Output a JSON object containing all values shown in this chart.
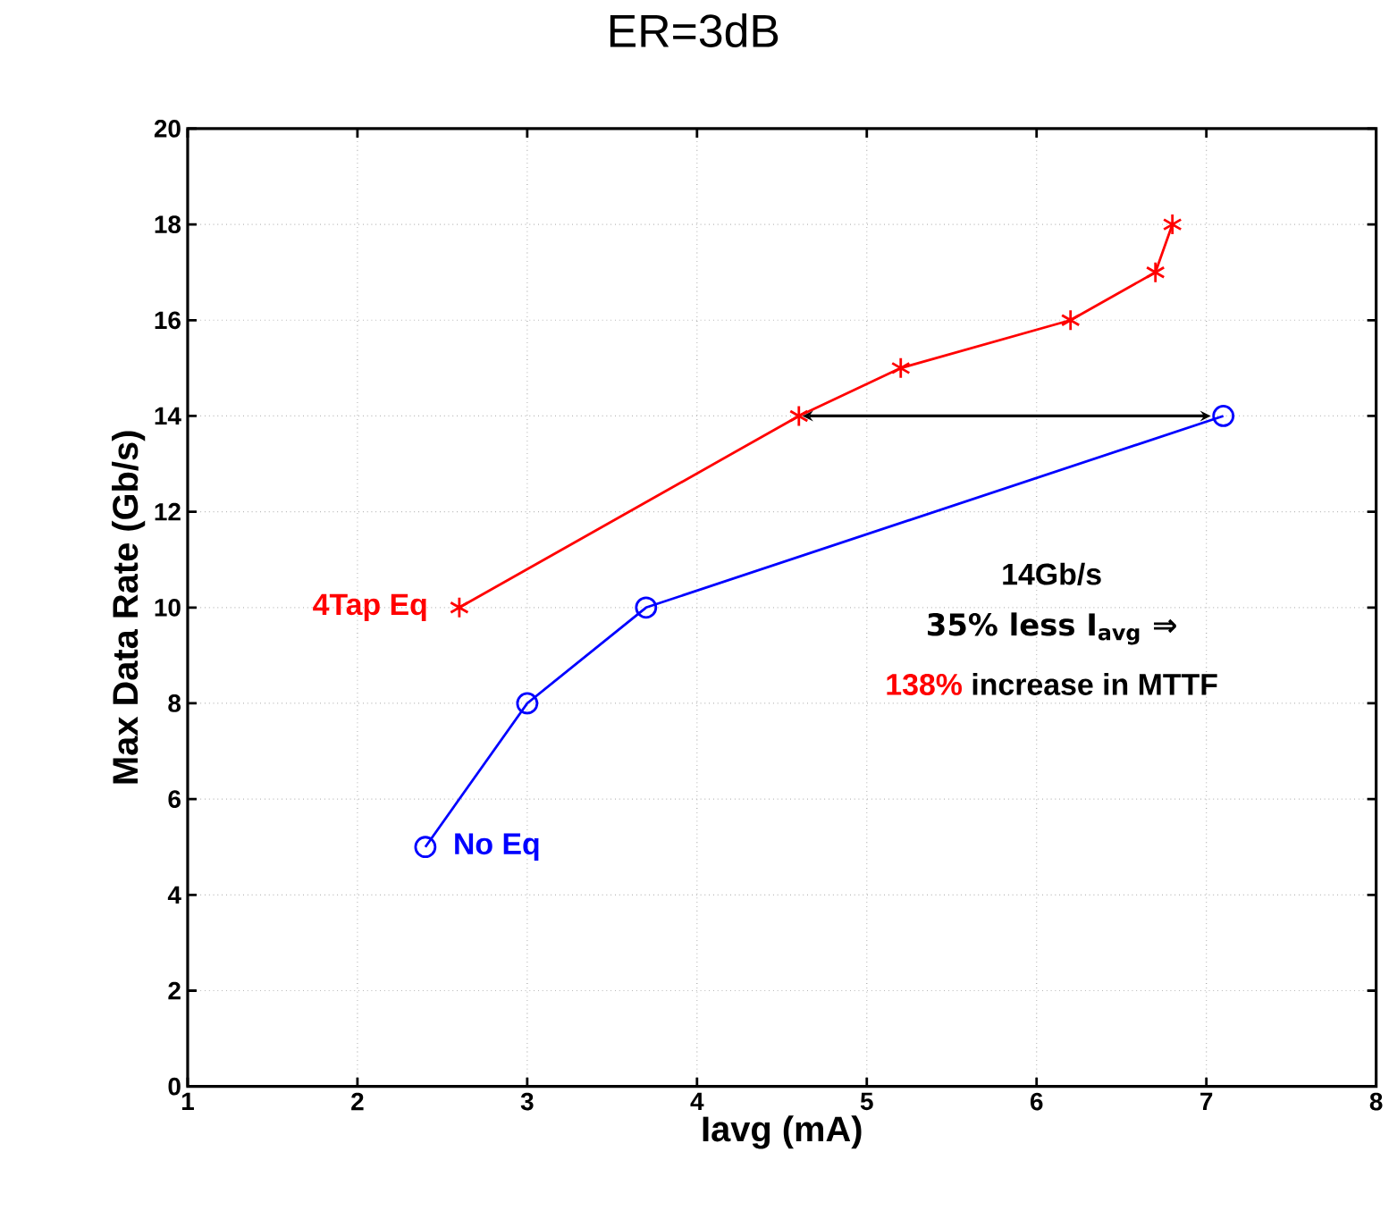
{
  "chart_data": {
    "type": "line",
    "title": "ER=3dB",
    "xlabel": "Iavg (mA)",
    "ylabel": "Max Data Rate (Gb/s)",
    "xlim": [
      1,
      8
    ],
    "xticks": [
      1,
      2,
      3,
      4,
      5,
      6,
      7,
      8
    ],
    "ylim": [
      0,
      20
    ],
    "yticks": [
      0,
      2,
      4,
      6,
      8,
      10,
      12,
      14,
      16,
      18,
      20
    ],
    "grid": true,
    "series": [
      {
        "name": "4Tap Eq",
        "color": "#ff0000",
        "marker": "cross",
        "x": [
          2.6,
          4.6,
          5.2,
          6.2,
          6.7,
          6.8
        ],
        "values": [
          10,
          14,
          15,
          16,
          17,
          18
        ]
      },
      {
        "name": "No Eq",
        "color": "#0000ff",
        "marker": "circle",
        "x": [
          2.4,
          3.0,
          3.7,
          7.1
        ],
        "values": [
          5,
          8,
          10,
          14
        ]
      }
    ],
    "annotations": [
      "14Gb/s",
      "35% less I$_{avg}$ ⇒",
      "138%",
      "increase in MTTF"
    ]
  }
}
